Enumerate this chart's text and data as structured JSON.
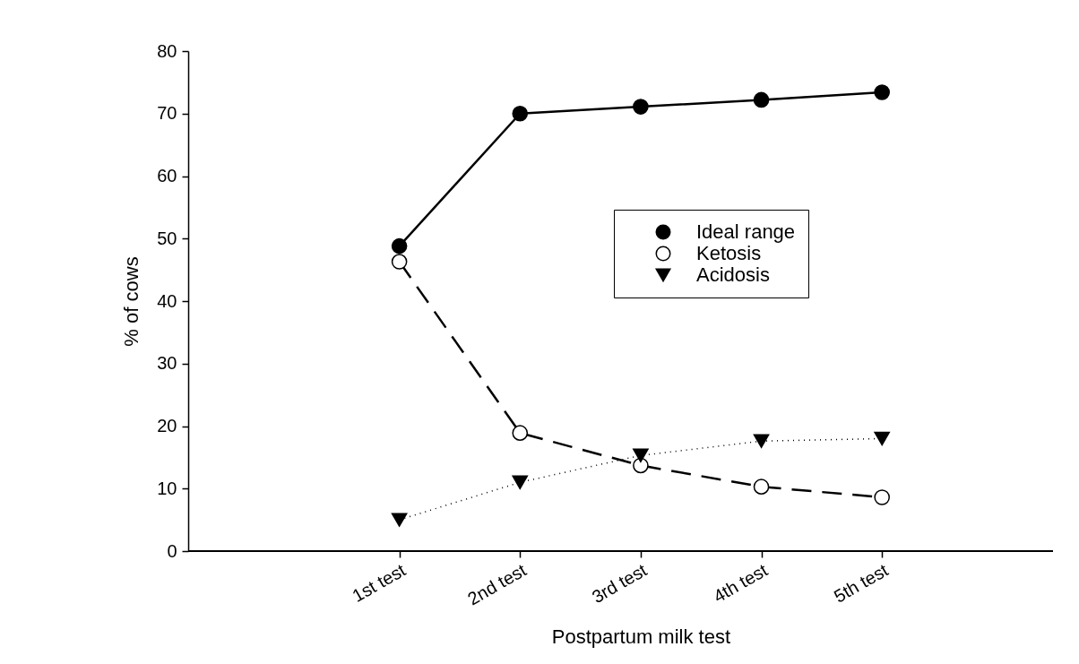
{
  "chart_data": {
    "type": "line",
    "xlabel": "Postpartum milk test",
    "ylabel": "% of cows",
    "categories": [
      "1st test",
      "2nd test",
      "3rd test",
      "4th test",
      "5th test"
    ],
    "series": [
      {
        "name": "Ideal range",
        "color": "#000000",
        "marker": "circle",
        "line_style": "solid",
        "values": [
          48.8,
          70.0,
          71.1,
          72.2,
          73.4
        ]
      },
      {
        "name": "Ketosis",
        "color": "#000000",
        "marker": "circle",
        "line_style": "dashed",
        "values": [
          46.3,
          18.9,
          13.7,
          10.3,
          8.6
        ]
      },
      {
        "name": "Acidosis",
        "color": "#000000",
        "marker": "triangle",
        "line_style": "dotted",
        "values": [
          5.0,
          11.0,
          15.3,
          17.6,
          18.0
        ]
      }
    ],
    "ylim": [
      0,
      80
    ],
    "yticks": [
      0,
      10,
      20,
      30,
      40,
      50,
      60,
      70,
      80
    ],
    "grid": false,
    "legend": "right"
  }
}
